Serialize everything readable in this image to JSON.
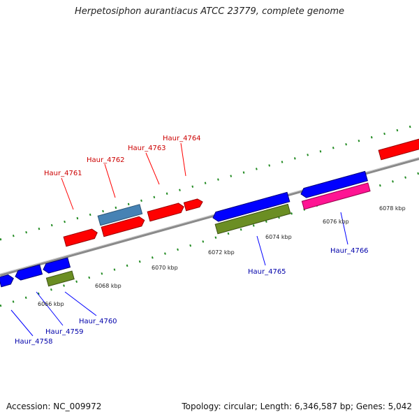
{
  "title": "Herpetosiphon aurantiacus ATCC 23779, complete genome",
  "footer": {
    "accession": "Accession: NC_009972",
    "summary": "Topology: circular; Length: 6,346,587 bp; Genes: 5,042"
  },
  "colors": {
    "forward_gene": "#ff0000",
    "reverse_gene": "#0000ff",
    "rna_gene": "#6b8e23",
    "pseudo_gene": "#4682b4",
    "magenta_gene": "#ff1493",
    "track_dots": "#228b22",
    "axis": "#888888",
    "label_forward": "#cc0000",
    "label_reverse": "#0000aa"
  },
  "scale_ticks": [
    "6066 kbp",
    "6068 kbp",
    "6070 kbp",
    "6072 kbp",
    "6074 kbp",
    "6076 kbp",
    "6078 kbp"
  ],
  "gene_labels": [
    {
      "id": "Haur_4761",
      "strand": "forward"
    },
    {
      "id": "Haur_4762",
      "strand": "forward"
    },
    {
      "id": "Haur_4763",
      "strand": "forward"
    },
    {
      "id": "Haur_4764",
      "strand": "forward"
    },
    {
      "id": "Haur_4765",
      "strand": "reverse"
    },
    {
      "id": "Haur_4766",
      "strand": "reverse"
    },
    {
      "id": "Haur_4760",
      "strand": "reverse"
    },
    {
      "id": "Haur_4759",
      "strand": "reverse"
    },
    {
      "id": "Haur_4758",
      "strand": "reverse"
    }
  ]
}
